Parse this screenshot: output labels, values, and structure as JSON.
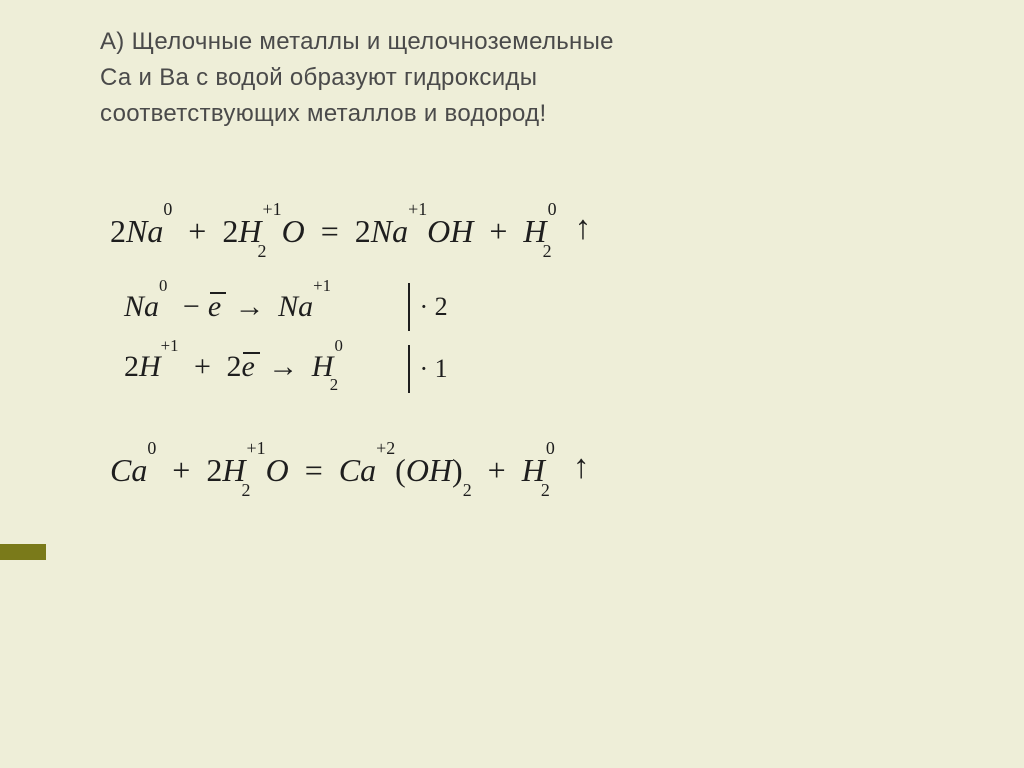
{
  "background_color": "#eeeed8",
  "accent_bar_color": "#7a7a1a",
  "text_color": "#4a4a4a",
  "formula_color": "#1e1e1e",
  "paragraph": {
    "line1": "А) Щелочные металлы и щелочноземельные",
    "line2": "Са и Ва с водой образуют гидроксиды",
    "line3": "соответствующих металлов и водород!",
    "fontsize": 24
  },
  "eq1": {
    "lhs_coef1": "2",
    "lhs1": "Na",
    "lhs1_sup": "0",
    "plus": "+",
    "lhs_coef2": "2",
    "lhs2a": "H",
    "lhs2a_sub": "2",
    "lhs2a_sup": "+1",
    "lhs2b": "O",
    "eq": "=",
    "rhs_coef1": "2",
    "rhs1": "Na",
    "rhs1_sup": "+1",
    "rhs2": "OH",
    "rhs3": "H",
    "rhs3_sub": "2",
    "rhs3_sup": "0",
    "gas": "↑"
  },
  "half1": {
    "sp1": "Na",
    "sp1_sup": "0",
    "minus": "−",
    "e": "e",
    "arrow": "→",
    "sp2": "Na",
    "sp2_sup": "+1",
    "mult": "· 2"
  },
  "half2": {
    "coef1": "2",
    "sp1": "H",
    "sp1_sup": "+1",
    "plus": "+",
    "coef2": "2",
    "e": "e",
    "arrow": "→",
    "sp2": "H",
    "sp2_sub": "2",
    "sp2_sup": "0",
    "mult": "· 1"
  },
  "eq2": {
    "lhs1": "Ca",
    "lhs1_sup": "0",
    "plus": "+",
    "lhs_coef2": "2",
    "lhs2a": "H",
    "lhs2a_sub": "2",
    "lhs2a_sup": "+1",
    "lhs2b": "O",
    "eq": "=",
    "rhs1": "Ca",
    "rhs1_sup": "+2",
    "paren_l": "(",
    "rhs2": "OH",
    "paren_r": ")",
    "rhs2_sub": "2",
    "rhs3": "H",
    "rhs3_sub": "2",
    "rhs3_sup": "0",
    "gas": "↑"
  }
}
